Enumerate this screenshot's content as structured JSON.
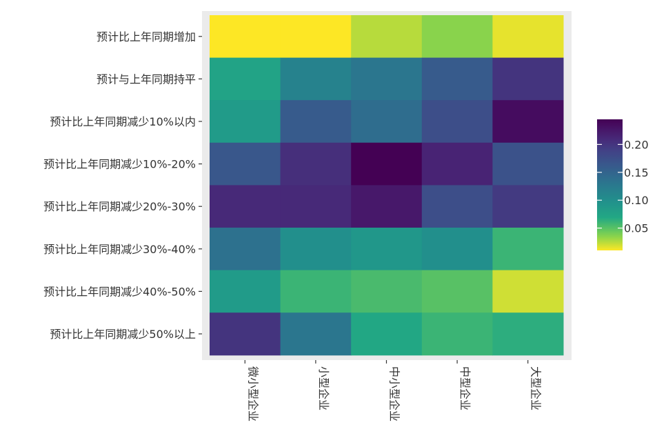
{
  "chart_data": {
    "type": "heatmap",
    "title": "",
    "xlabel": "",
    "ylabel": "",
    "x_categories": [
      "微小型企业",
      "小型企业",
      "中小型企业",
      "中型企业",
      "大型企业"
    ],
    "y_categories": [
      "预计比上年同期增加",
      "预计与上年同期持平",
      "预计比上年同期减少10%以内",
      "预计比上年同期减少10%-20%",
      "预计比上年同期减少20%-30%",
      "预计比上年同期减少30%-40%",
      "预计比上年同期减少40%-50%",
      "预计比上年同期减少50%以上"
    ],
    "values": [
      [
        0.01,
        0.01,
        0.025,
        0.035,
        0.015
      ],
      [
        0.075,
        0.115,
        0.13,
        0.16,
        0.2
      ],
      [
        0.085,
        0.16,
        0.14,
        0.175,
        0.235
      ],
      [
        0.165,
        0.205,
        0.245,
        0.215,
        0.17
      ],
      [
        0.21,
        0.21,
        0.225,
        0.175,
        0.195
      ],
      [
        0.135,
        0.1,
        0.09,
        0.1,
        0.06
      ],
      [
        0.085,
        0.06,
        0.055,
        0.05,
        0.02
      ],
      [
        0.2,
        0.13,
        0.07,
        0.06,
        0.065
      ]
    ],
    "color_scale": {
      "name": "viridis-reversed",
      "min": 0.01,
      "max": 0.245,
      "ticks": [
        0.05,
        0.1,
        0.15,
        0.2
      ],
      "tick_labels": [
        "0.05",
        "0.10",
        "0.15",
        "0.20"
      ]
    },
    "legend_position": "right",
    "panel_background": "#ebebeb"
  }
}
